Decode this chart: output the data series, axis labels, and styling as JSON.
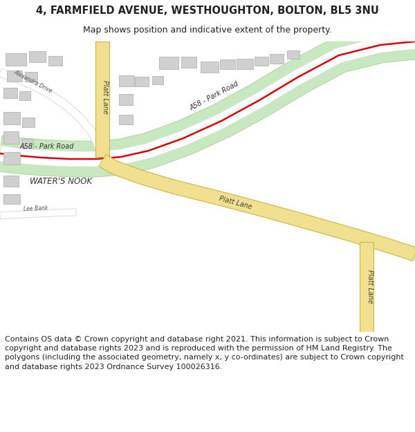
{
  "title_line1": "4, FARMFIELD AVENUE, WESTHOUGHTON, BOLTON, BL5 3NU",
  "title_line2": "Map shows position and indicative extent of the property.",
  "footer_text": "Contains OS data © Crown copyright and database right 2021. This information is subject to Crown copyright and database rights 2023 and is reproduced with the permission of HM Land Registry. The polygons (including the associated geometry, namely x, y co-ordinates) are subject to Crown copyright and database rights 2023 Ordnance Survey 100026316.",
  "bg_color": "#ffffff",
  "map_bg": "#ffffff",
  "road_a58_green": "#c8e8c0",
  "road_a58_green_edge": "#a0c890",
  "road_white": "#ffffff",
  "road_white_edge": "#dddddd",
  "road_red": "#dd0000",
  "road_platt_fill": "#f0e090",
  "road_platt_edge": "#c8b840",
  "building_fill": "#d0d0d0",
  "building_edge": "#aaaaaa",
  "text_dark": "#222222",
  "text_label": "#444444",
  "title_fontsize": 10.5,
  "subtitle_fontsize": 9,
  "footer_fontsize": 8,
  "label_fontsize": 7
}
